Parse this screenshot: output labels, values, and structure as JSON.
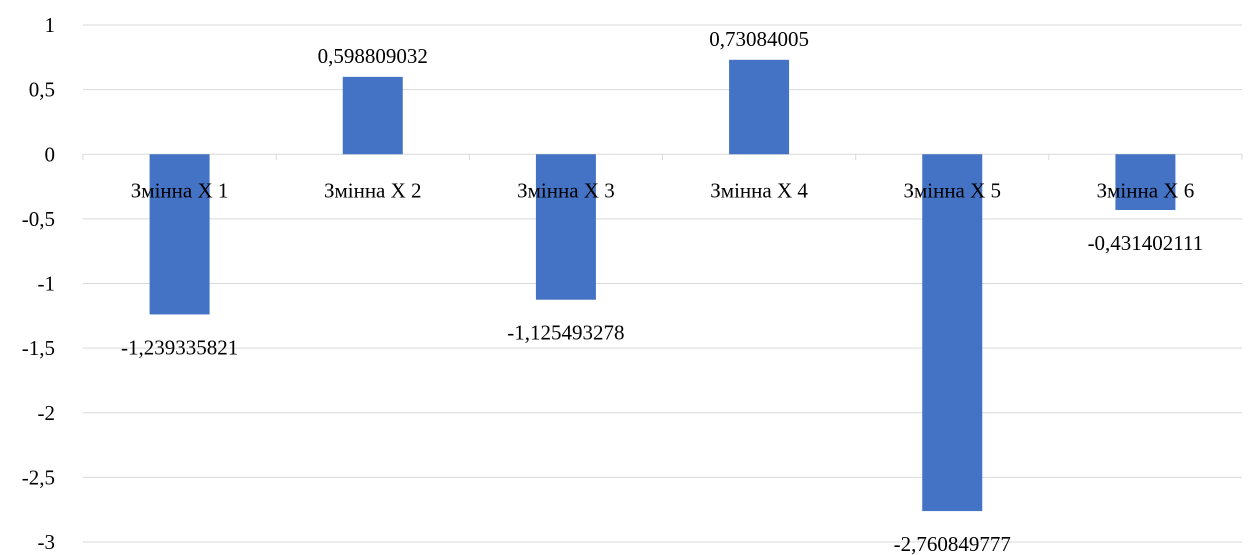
{
  "chart_data": {
    "type": "bar",
    "title": "",
    "xlabel": "",
    "ylabel": "",
    "categories": [
      "Змінна Х 1",
      "Змінна Х 2",
      "Змінна Х 3",
      "Змінна Х 4",
      "Змінна Х 5",
      "Змінна Х 6"
    ],
    "values": [
      -1.239335821,
      0.598809032,
      -1.125493278,
      0.73084005,
      -2.760849777,
      -0.431402111
    ],
    "data_labels": [
      "-1,239335821",
      "0,598809032",
      "-1,125493278",
      "0,73084005",
      "-2,760849777",
      "-0,431402111"
    ],
    "ylim": [
      -3,
      1
    ],
    "y_ticks": [
      1,
      0.5,
      0,
      -0.5,
      -1,
      -1.5,
      -2,
      -2.5,
      -3
    ],
    "y_tick_labels": [
      "1",
      "0,5",
      "0",
      "-0,5",
      "-1",
      "-1,5",
      "-2",
      "-2,5",
      "-3"
    ],
    "grid": true,
    "legend": false,
    "bar_color": "#4472c4",
    "grid_color": "#d9d9d9"
  }
}
